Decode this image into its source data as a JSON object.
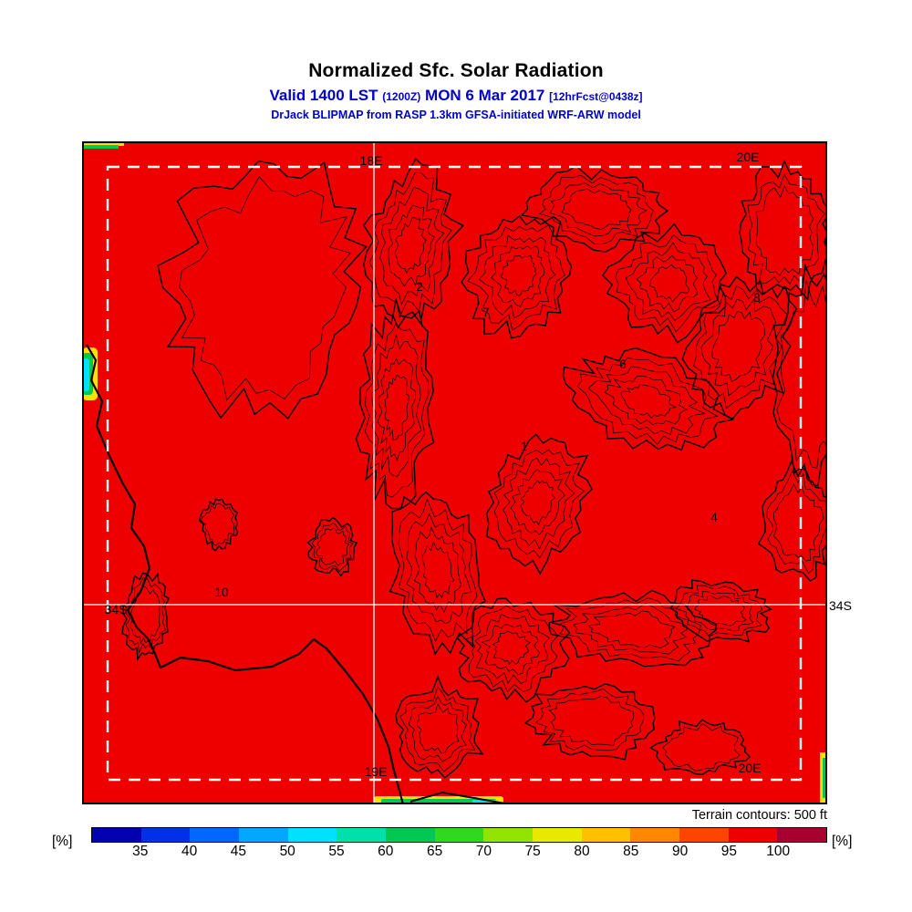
{
  "header": {
    "title": "Normalized Sfc. Solar Radiation",
    "valid_prefix": "Valid 1400 LST",
    "valid_zulu": "(1200Z)",
    "valid_date": "MON 6 Mar 2017",
    "forecast_tag": "[12hrFcst@0438z]",
    "model_line": "DrJack BLIPMAP from RASP 1.3km GFSA-initiated WRF-ARW model"
  },
  "map": {
    "grid_labels": {
      "top_left_meridian": "18E",
      "top_right_meridian": "20E",
      "bottom_left_meridian": "19E",
      "bottom_right_meridian": "20E",
      "left_parallel": "34S",
      "right_parallel": "34S"
    },
    "site_labels": [
      "2",
      "7",
      "8",
      "6",
      "1",
      "4",
      "10"
    ],
    "terrain_note": "Terrain contours: 500 ft"
  },
  "colorbar": {
    "unit_left": "[%]",
    "unit_right": "[%]",
    "tick_labels": [
      "35",
      "40",
      "45",
      "50",
      "55",
      "60",
      "65",
      "70",
      "75",
      "80",
      "85",
      "90",
      "95",
      "100"
    ],
    "segment_colors": [
      "#0000b0",
      "#0030e8",
      "#0068ff",
      "#00a8ff",
      "#00e0ff",
      "#00e0a8",
      "#00c850",
      "#30d820",
      "#90e400",
      "#e8e800",
      "#ffc000",
      "#ff8800",
      "#ff4400",
      "#ee0000",
      "#a80030"
    ]
  },
  "colors": {
    "heading_blue": "#0000cc",
    "map_red": "#ee0000",
    "contour_black": "#000000",
    "grid_white": "#ffffff"
  },
  "chart_data": {
    "type": "heatmap",
    "title": "Normalized Sfc. Solar Radiation",
    "units": "%",
    "valid_time": "1400 LST (1200Z) MON 6 Mar 2017",
    "forecast": "12hrFcst@0438z",
    "model": "DrJack BLIPMAP from RASP 1.3km GFSA-initiated WRF-ARW model",
    "colorbar_ticks": [
      35,
      40,
      45,
      50,
      55,
      60,
      65,
      70,
      75,
      80,
      85,
      90,
      95,
      100
    ],
    "colorbar_colors": [
      "#0000b0",
      "#0030e8",
      "#0068ff",
      "#00a8ff",
      "#00e0ff",
      "#00e0a8",
      "#00c850",
      "#30d820",
      "#90e400",
      "#e8e800",
      "#ffc000",
      "#ff8800",
      "#ff4400",
      "#ee0000",
      "#a80030"
    ],
    "field_summary": "Near-uniform value of ~100% (bright red) across the entire domain; narrow low-value strips (~45-75%, cyan/green/yellow) hug the west coast edge, the top-left corner, the south edge near 19E and the east edge near 34S",
    "grid": {
      "meridians": [
        "18E",
        "19E",
        "20E"
      ],
      "parallels": [
        "34S"
      ]
    },
    "terrain_contour_interval_ft": 500,
    "site_markers": [
      2,
      7,
      8,
      6,
      1,
      4,
      10
    ],
    "legend_position": "bottom"
  }
}
